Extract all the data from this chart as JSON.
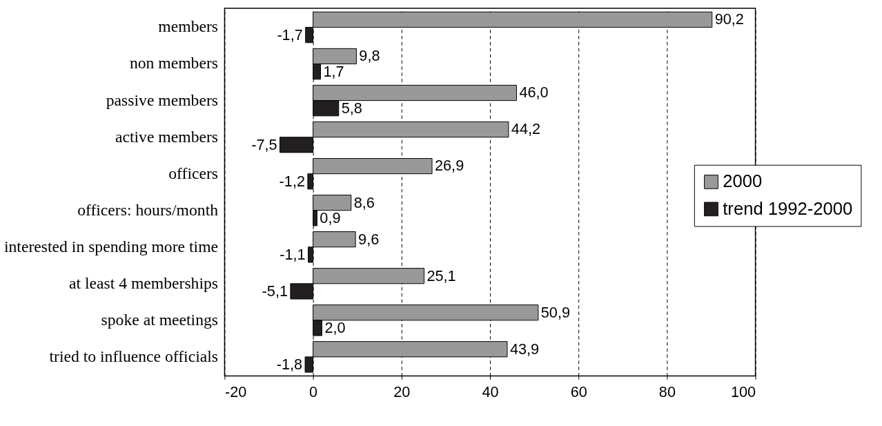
{
  "chart_data": {
    "type": "bar",
    "orientation": "horizontal",
    "categories": [
      "members",
      "non members",
      "passive members",
      "active members",
      "officers",
      "officers: hours/month",
      "interested in spending more time",
      "at least 4 memberships",
      "spoke at meetings",
      "tried to influence officials"
    ],
    "series": [
      {
        "name": "2000",
        "color": "#999999",
        "values": [
          90.2,
          9.8,
          46.0,
          44.2,
          26.9,
          8.6,
          9.6,
          25.1,
          50.9,
          43.9
        ],
        "value_labels": [
          "90,2",
          "9,8",
          "46,0",
          "44,2",
          "26,9",
          "8,6",
          "9,6",
          "25,1",
          "50,9",
          "43,9"
        ]
      },
      {
        "name": "trend 1992-2000",
        "color": "#231f20",
        "values": [
          -1.7,
          1.7,
          5.8,
          -7.5,
          -1.2,
          0.9,
          -1.1,
          -5.1,
          2.0,
          -1.8
        ],
        "value_labels": [
          "-1,7",
          "1,7",
          "5,8",
          "-7,5",
          "-1,2",
          "0,9",
          "-1,1",
          "-5,1",
          "2,0",
          "-1,8"
        ]
      }
    ],
    "xlim": [
      -20,
      100
    ],
    "xticks": [
      -20,
      0,
      20,
      40,
      60,
      80,
      100
    ],
    "grid": "x",
    "legend": "right"
  }
}
